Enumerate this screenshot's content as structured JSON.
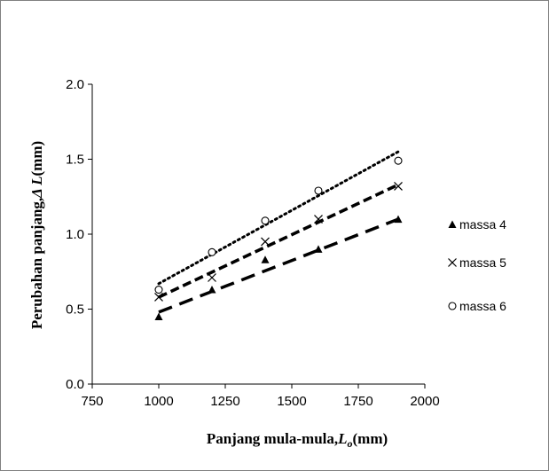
{
  "chart_data": {
    "type": "scatter",
    "xlabel": "Panjang mula-mula,",
    "xlabel_symbol": "L",
    "xlabel_sub": "o",
    "xlabel_unit": "(mm)",
    "ylabel": "Perubahan panjang,",
    "ylabel_symbol": "Δ L",
    "ylabel_unit": "(mm)",
    "xlim": [
      750,
      2000
    ],
    "ylim": [
      0,
      2.0
    ],
    "xticks": [
      "750",
      "1000",
      "1250",
      "1500",
      "1750",
      "2000"
    ],
    "yticks": [
      "0.0",
      "0.5",
      "1.0",
      "1.5",
      "2.0"
    ],
    "grid": false,
    "legend_position": "right",
    "series": [
      {
        "name": "massa 4",
        "marker": "triangle",
        "trendline": "long-dash",
        "x": [
          1000,
          1200,
          1400,
          1600,
          1900
        ],
        "y": [
          0.45,
          0.63,
          0.83,
          0.9,
          1.1
        ],
        "trend_y": [
          0.48,
          1.1
        ]
      },
      {
        "name": "massa 5",
        "marker": "x",
        "trendline": "dash",
        "x": [
          1000,
          1200,
          1400,
          1600,
          1900
        ],
        "y": [
          0.58,
          0.71,
          0.95,
          1.1,
          1.32
        ],
        "trend_y": [
          0.58,
          1.33
        ]
      },
      {
        "name": "massa 6",
        "marker": "circle",
        "trendline": "dotted",
        "x": [
          1000,
          1200,
          1400,
          1600,
          1900
        ],
        "y": [
          0.63,
          0.88,
          1.09,
          1.29,
          1.49
        ],
        "trend_y": [
          0.67,
          1.55
        ]
      }
    ]
  }
}
